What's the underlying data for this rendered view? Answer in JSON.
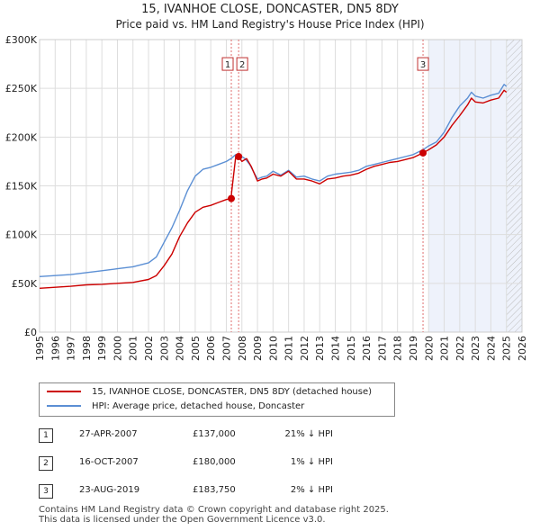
{
  "header": {
    "title": "15, IVANHOE CLOSE, DONCASTER, DN5 8DY",
    "subtitle": "Price paid vs. HM Land Registry's House Price Index (HPI)"
  },
  "colors": {
    "price": "#cc0000",
    "hpi": "#5b8fd4",
    "shade": "#eef2fb",
    "vline": "#e07070"
  },
  "chart_data": {
    "type": "line",
    "ylim": [
      0,
      300000
    ],
    "xlim": [
      1995,
      2026
    ],
    "y_ticks": [
      0,
      50000,
      100000,
      150000,
      200000,
      250000,
      300000
    ],
    "y_tick_labels": [
      "£0",
      "£50K",
      "£100K",
      "£150K",
      "£200K",
      "£250K",
      "£300K"
    ],
    "x_tick_labels": [
      "1995",
      "1996",
      "1997",
      "1998",
      "1999",
      "2000",
      "2001",
      "2002",
      "2003",
      "2004",
      "2005",
      "2006",
      "2007",
      "2008",
      "2009",
      "2010",
      "2011",
      "2012",
      "2013",
      "2014",
      "2015",
      "2016",
      "2017",
      "2018",
      "2019",
      "2020",
      "2021",
      "2022",
      "2023",
      "2024",
      "2025",
      "2026"
    ],
    "shaded_from": 2020.0,
    "hatched_from": 2025.0,
    "series": [
      {
        "name": "15, IVANHOE CLOSE, DONCASTER, DN5 8DY (detached house)",
        "x": [
          1995,
          1996,
          1997,
          1998,
          1999,
          2000,
          2001,
          2002,
          2002.5,
          2003,
          2003.5,
          2004,
          2004.5,
          2005,
          2005.5,
          2006,
          2006.5,
          2007.0,
          2007.32,
          2007.33,
          2007.6,
          2007.79,
          2008.0,
          2008.3,
          2008.6,
          2009.0,
          2009.3,
          2009.6,
          2010.0,
          2010.5,
          2011.0,
          2011.5,
          2012.0,
          2012.5,
          2013.0,
          2013.5,
          2014.0,
          2014.5,
          2015.0,
          2015.5,
          2016.0,
          2016.5,
          2017.0,
          2017.5,
          2018.0,
          2018.5,
          2019.0,
          2019.64,
          2020.0,
          2020.5,
          2021.0,
          2021.5,
          2022.0,
          2022.5,
          2022.75,
          2023.0,
          2023.5,
          2024.0,
          2024.5,
          2024.85,
          2025.0
        ],
        "values": [
          45000,
          46000,
          47000,
          48500,
          49000,
          50000,
          51000,
          54000,
          58000,
          68000,
          80000,
          98000,
          112000,
          123000,
          128000,
          130000,
          133000,
          136000,
          137000,
          142000,
          180000,
          180000,
          175000,
          178000,
          170000,
          155000,
          157000,
          158000,
          162000,
          160000,
          165000,
          157000,
          157000,
          155000,
          152000,
          157000,
          158000,
          160000,
          161000,
          163000,
          167000,
          170000,
          172000,
          174000,
          175000,
          177000,
          179000,
          183750,
          187000,
          192000,
          200000,
          212000,
          222000,
          233000,
          240000,
          236000,
          235000,
          238000,
          240000,
          248000,
          246000
        ]
      },
      {
        "name": "HPI: Average price, detached house, Doncaster",
        "x": [
          1995,
          1996,
          1997,
          1998,
          1999,
          2000,
          2001,
          2002,
          2002.5,
          2003,
          2003.5,
          2004,
          2004.5,
          2005,
          2005.5,
          2006,
          2006.5,
          2007.0,
          2007.3,
          2007.6,
          2007.9,
          2008.2,
          2008.5,
          2009.0,
          2009.3,
          2009.6,
          2010.0,
          2010.5,
          2011.0,
          2011.5,
          2012.0,
          2012.5,
          2013.0,
          2013.5,
          2014.0,
          2014.5,
          2015.0,
          2015.5,
          2016.0,
          2016.5,
          2017.0,
          2017.5,
          2018.0,
          2018.5,
          2019.0,
          2019.64,
          2020.0,
          2020.5,
          2021.0,
          2021.5,
          2022.0,
          2022.5,
          2022.75,
          2023.0,
          2023.5,
          2024.0,
          2024.5,
          2024.85,
          2025.0
        ],
        "values": [
          57000,
          58000,
          59000,
          61000,
          63000,
          65000,
          67000,
          71000,
          77000,
          92000,
          107000,
          125000,
          145000,
          160000,
          167000,
          169000,
          172000,
          175000,
          178000,
          182000,
          181000,
          178000,
          172000,
          157000,
          159000,
          160000,
          165000,
          161000,
          166000,
          159000,
          160000,
          157000,
          155000,
          160000,
          162000,
          163000,
          164000,
          166000,
          170000,
          172000,
          174000,
          176000,
          178000,
          180000,
          182000,
          187000,
          191000,
          195000,
          205000,
          220000,
          232000,
          240000,
          246000,
          242000,
          240000,
          243000,
          245000,
          254000,
          252000
        ]
      }
    ],
    "sales": [
      {
        "label": "1",
        "x": 2007.32,
        "value": 137000
      },
      {
        "label": "2",
        "x": 2007.79,
        "value": 180000
      },
      {
        "label": "3",
        "x": 2019.64,
        "value": 183750
      }
    ]
  },
  "legend": {
    "items": [
      {
        "label": "15, IVANHOE CLOSE, DONCASTER, DN5 8DY (detached house)"
      },
      {
        "label": "HPI: Average price, detached house, Doncaster"
      }
    ]
  },
  "transactions": [
    {
      "num": "1",
      "date": "27-APR-2007",
      "price": "£137,000",
      "hpi": "21% ↓ HPI"
    },
    {
      "num": "2",
      "date": "16-OCT-2007",
      "price": "£180,000",
      "hpi": "1% ↓ HPI"
    },
    {
      "num": "3",
      "date": "23-AUG-2019",
      "price": "£183,750",
      "hpi": "2% ↓ HPI"
    }
  ],
  "footer": {
    "line1": "Contains HM Land Registry data © Crown copyright and database right 2025.",
    "line2": "This data is licensed under the Open Government Licence v3.0."
  }
}
